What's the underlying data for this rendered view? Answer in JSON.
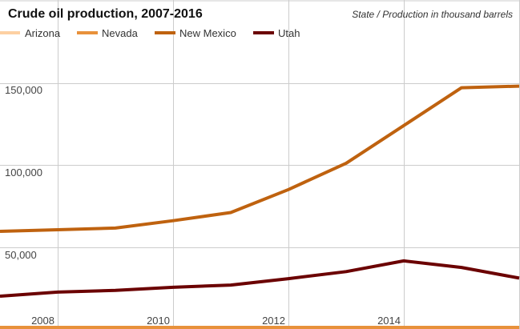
{
  "chart_data": {
    "type": "line",
    "title": "Crude oil production, 2007-2016",
    "subtitle": "State / Production in thousand barrels",
    "xlabel": "",
    "ylabel": "",
    "x": [
      2007,
      2008,
      2009,
      2010,
      2011,
      2012,
      2013,
      2014,
      2015,
      2016
    ],
    "xlim": [
      2007,
      2016
    ],
    "ylim": [
      0,
      200000
    ],
    "x_ticks": [
      2008,
      2010,
      2012,
      2014
    ],
    "x_tick_labels": [
      "2008",
      "2010",
      "2012",
      "2014"
    ],
    "y_ticks": [
      50000,
      100000,
      150000
    ],
    "y_tick_labels": [
      "50,000",
      "100,000",
      "150,000"
    ],
    "grid": true,
    "legend_position": "top-left",
    "series": [
      {
        "name": "Arizona",
        "color": "#fdd0a2",
        "values": [
          0,
          0,
          0,
          0,
          0,
          0,
          0,
          0,
          0,
          0
        ]
      },
      {
        "name": "Nevada",
        "color": "#e8913b",
        "values": [
          400,
          400,
          400,
          400,
          400,
          400,
          400,
          400,
          400,
          400
        ]
      },
      {
        "name": "New Mexico",
        "color": "#bf620f",
        "values": [
          59500,
          60500,
          61500,
          66000,
          71000,
          85000,
          101000,
          124000,
          147000,
          148000
        ]
      },
      {
        "name": "Utah",
        "color": "#6b0000",
        "values": [
          20000,
          22500,
          23500,
          25400,
          26800,
          30700,
          35000,
          41500,
          37500,
          31000
        ]
      }
    ]
  }
}
